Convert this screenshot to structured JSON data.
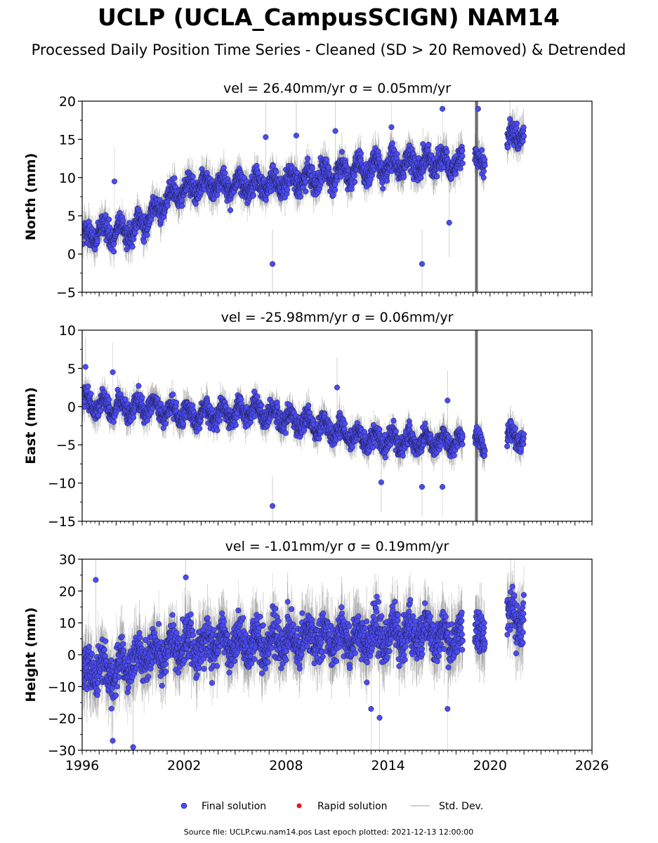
{
  "header": {
    "title": "UCLP (UCLA_CampusSCIGN) NAM14",
    "subtitle": "Processed Daily Position Time Series - Cleaned (SD > 20 Removed) & Detrended"
  },
  "footer": "Source file: UCLP.cwu.nam14.pos  Last epoch plotted: 2021-12-13 12:00:00",
  "legend": {
    "final_label": "Final solution",
    "rapid_label": "Rapid solution",
    "std_label": "Std. Dev."
  },
  "colors": {
    "final": "#4b4bf2",
    "rapid": "#e31a1c",
    "stddev": "#bdbdbd",
    "stddev_dark": "#555555",
    "marker_edge": "#1a1a40"
  },
  "chart_data": [
    {
      "type": "scatter",
      "panel": "north",
      "title": "vel = 26.40mm/yr   σ = 0.05mm/yr",
      "ylabel": "North (mm)",
      "xlim": [
        1996,
        2026
      ],
      "ylim": [
        -5,
        20
      ],
      "yticks": [
        "−5",
        "0",
        "5",
        "10",
        "15",
        "20"
      ],
      "ytick_values": [
        -5,
        0,
        5,
        10,
        15,
        20
      ],
      "trend": [
        [
          1996.0,
          2.0
        ],
        [
          1997.5,
          3.0
        ],
        [
          1999.0,
          3.0
        ],
        [
          2000.5,
          6.0
        ],
        [
          2001.5,
          8.0
        ],
        [
          2003.0,
          9.0
        ],
        [
          2006.0,
          9.0
        ],
        [
          2008.0,
          9.5
        ],
        [
          2010.0,
          10.0
        ],
        [
          2012.0,
          11.0
        ],
        [
          2014.0,
          11.5
        ],
        [
          2016.0,
          12.0
        ],
        [
          2018.0,
          12.0
        ],
        [
          2019.5,
          12.0
        ],
        [
          2021.0,
          14.5
        ],
        [
          2022.0,
          16.0
        ]
      ],
      "scatter_sd": 1.5,
      "seasonal_amplitude": 1.0,
      "outliers": [
        [
          2007.2,
          -1.3
        ],
        [
          2016.0,
          -1.3
        ],
        [
          2017.2,
          19.0
        ],
        [
          2019.3,
          19.0
        ],
        [
          2017.6,
          4.1
        ],
        [
          1997.9,
          9.5
        ],
        [
          2008.6,
          15.5
        ],
        [
          2010.9,
          16.1
        ],
        [
          2014.2,
          16.6
        ],
        [
          2006.8,
          15.3
        ]
      ],
      "gaps": [
        [
          2018.4,
          2019.1
        ],
        [
          2019.7,
          2021.0
        ]
      ],
      "spike": {
        "x": 2019.2,
        "ymin": -5,
        "ymax": 20
      }
    },
    {
      "type": "scatter",
      "panel": "east",
      "title": "vel = -25.98mm/yr   σ = 0.06mm/yr",
      "ylabel": "East (mm)",
      "xlim": [
        1996,
        2026
      ],
      "ylim": [
        -15,
        10
      ],
      "yticks": [
        "−15",
        "−10",
        "−5",
        "0",
        "5",
        "10"
      ],
      "ytick_values": [
        -15,
        -10,
        -5,
        0,
        5,
        10
      ],
      "trend": [
        [
          1996.0,
          0.5
        ],
        [
          1998.0,
          0.0
        ],
        [
          2000.0,
          0.0
        ],
        [
          2002.0,
          -1.0
        ],
        [
          2004.0,
          -1.0
        ],
        [
          2006.0,
          -0.5
        ],
        [
          2008.0,
          -1.5
        ],
        [
          2010.0,
          -2.5
        ],
        [
          2012.0,
          -4.0
        ],
        [
          2014.0,
          -4.5
        ],
        [
          2016.0,
          -4.5
        ],
        [
          2018.0,
          -4.5
        ],
        [
          2019.5,
          -5.0
        ],
        [
          2021.0,
          -4.0
        ],
        [
          2022.0,
          -4.0
        ]
      ],
      "scatter_sd": 1.3,
      "seasonal_amplitude": 1.0,
      "outliers": [
        [
          2007.2,
          -13.0
        ],
        [
          2016.0,
          -10.5
        ],
        [
          2017.2,
          -10.5
        ],
        [
          2013.6,
          -9.9
        ],
        [
          1996.2,
          5.2
        ],
        [
          1997.8,
          4.5
        ],
        [
          2017.5,
          0.8
        ],
        [
          2011.0,
          2.5
        ]
      ],
      "gaps": [
        [
          2018.4,
          2019.1
        ],
        [
          2019.7,
          2021.0
        ]
      ],
      "spike": {
        "x": 2019.2,
        "ymin": -15,
        "ymax": 10
      }
    },
    {
      "type": "scatter",
      "panel": "height",
      "title": "vel = -1.01mm/yr   σ = 0.19mm/yr",
      "ylabel": "Height (mm)",
      "xlim": [
        1996,
        2026
      ],
      "ylim": [
        -30,
        30
      ],
      "yticks": [
        "−30",
        "−20",
        "−10",
        "0",
        "10",
        "20",
        "30"
      ],
      "ytick_values": [
        -30,
        -20,
        -10,
        0,
        10,
        20,
        30
      ],
      "xticks": [
        "1996",
        "2002",
        "2008",
        "2014",
        "2020",
        "2026"
      ],
      "xtick_values": [
        1996,
        2002,
        2008,
        2014,
        2020,
        2026
      ],
      "trend": [
        [
          1996.0,
          -5.0
        ],
        [
          1998.0,
          -5.0
        ],
        [
          2000.0,
          0.0
        ],
        [
          2002.0,
          3.0
        ],
        [
          2006.0,
          4.0
        ],
        [
          2010.0,
          5.0
        ],
        [
          2014.0,
          6.0
        ],
        [
          2016.0,
          7.0
        ],
        [
          2018.0,
          5.0
        ],
        [
          2019.5,
          6.0
        ],
        [
          2021.0,
          12.0
        ],
        [
          2022.0,
          12.0
        ]
      ],
      "scatter_sd": 6.5,
      "seasonal_amplitude": 3.0,
      "outliers": [
        [
          1996.8,
          23.5
        ],
        [
          2002.1,
          24.3
        ],
        [
          2013.0,
          -17.0
        ],
        [
          2013.5,
          -19.8
        ],
        [
          1999.0,
          -29.0
        ],
        [
          2017.5,
          -17.0
        ],
        [
          1997.8,
          -27.0
        ]
      ],
      "gaps": [
        [
          2018.4,
          2019.1
        ],
        [
          2019.7,
          2021.0
        ]
      ],
      "spike": null
    }
  ]
}
